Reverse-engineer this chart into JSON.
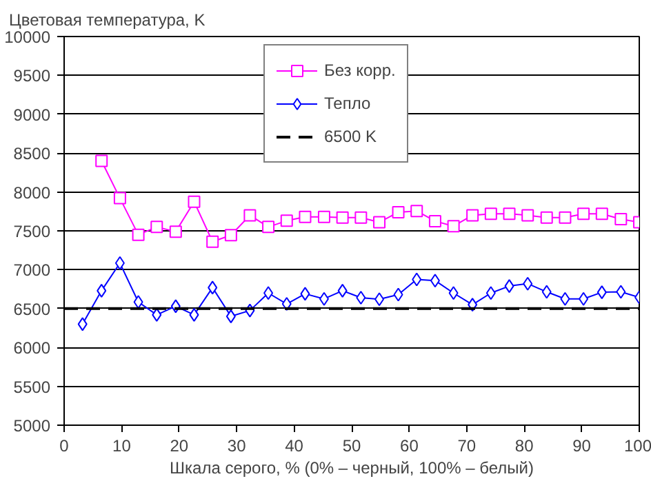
{
  "chart_data": {
    "type": "line",
    "ylabel": "Цветовая температура, K",
    "xlabel": "Шкала серого, % (0% – черный, 100% – белый)",
    "xlim": [
      0,
      100
    ],
    "xticks": [
      0,
      10,
      20,
      30,
      40,
      50,
      60,
      70,
      80,
      90,
      100
    ],
    "ylim": [
      5000,
      10000
    ],
    "yticks": [
      5000,
      5500,
      6000,
      6500,
      7000,
      7500,
      8000,
      8500,
      9000,
      9500,
      10000
    ],
    "grid": "y",
    "legend": "top",
    "series": [
      {
        "name": "Без корр.",
        "color": "#ff00ff",
        "marker": "square",
        "x": [
          6.5,
          9.7,
          12.9,
          16.1,
          19.4,
          22.6,
          25.8,
          29,
          32.3,
          35.5,
          38.7,
          41.9,
          45.2,
          48.4,
          51.6,
          54.8,
          58.1,
          61.3,
          64.5,
          67.7,
          71,
          74.2,
          77.4,
          80.6,
          83.9,
          87.1,
          90.3,
          93.5,
          96.8,
          100
        ],
        "values": [
          8400,
          7920,
          7450,
          7550,
          7490,
          7875,
          7360,
          7445,
          7700,
          7550,
          7630,
          7680,
          7680,
          7670,
          7670,
          7610,
          7740,
          7755,
          7625,
          7560,
          7700,
          7720,
          7720,
          7700,
          7670,
          7670,
          7720,
          7720,
          7650,
          7610
        ]
      },
      {
        "name": "Тепло",
        "color": "#0000ff",
        "marker": "diamond",
        "x": [
          3.2,
          6.5,
          9.7,
          12.9,
          16.1,
          19.4,
          22.6,
          25.8,
          29,
          32.3,
          35.5,
          38.7,
          41.9,
          45.2,
          48.4,
          51.6,
          54.8,
          58.1,
          61.3,
          64.5,
          67.7,
          71,
          74.2,
          77.4,
          80.6,
          83.9,
          87.1,
          90.3,
          93.5,
          96.8,
          100
        ],
        "values": [
          6300,
          6730,
          7085,
          6585,
          6420,
          6530,
          6420,
          6770,
          6400,
          6475,
          6700,
          6560,
          6690,
          6625,
          6730,
          6640,
          6620,
          6680,
          6875,
          6860,
          6700,
          6550,
          6700,
          6790,
          6820,
          6715,
          6625,
          6625,
          6710,
          6715,
          6645
        ]
      },
      {
        "name": "6500 K",
        "color": "#000000",
        "marker": "none",
        "line_style": "dashed",
        "x": [
          0,
          100
        ],
        "values": [
          6500,
          6500
        ]
      }
    ]
  }
}
